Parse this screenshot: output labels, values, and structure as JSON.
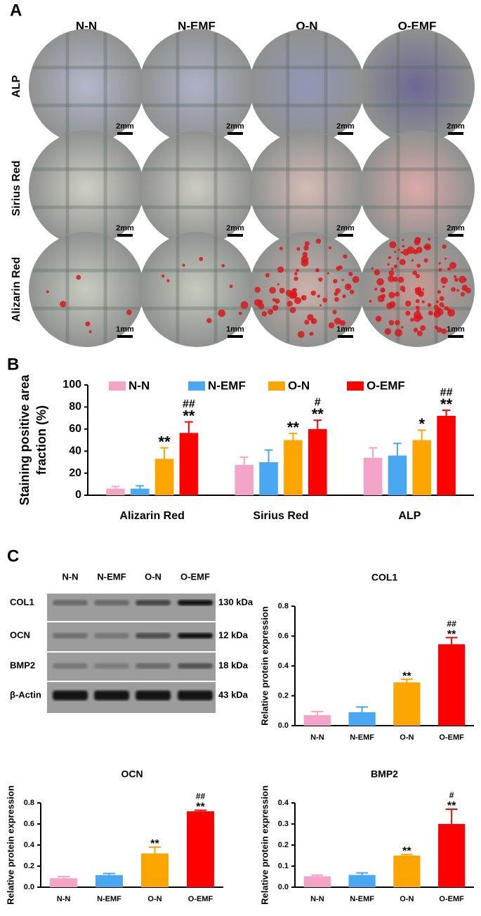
{
  "panel_labels": [
    "A",
    "B",
    "C"
  ],
  "panel_a": {
    "columns": [
      "N-N",
      "N-EMF",
      "O-N",
      "O-EMF"
    ],
    "rows": [
      "ALP",
      "Sirius Red",
      "Alizarin Red"
    ],
    "scale_bars": [
      "2mm",
      "2mm",
      "1mm"
    ]
  },
  "blot": {
    "lanes": [
      "N-N",
      "N-EMF",
      "O-N",
      "O-EMF"
    ],
    "proteins": [
      "COL1",
      "OCN",
      "BMP2",
      "β-Actin"
    ],
    "sizes": [
      "130 kDa",
      "12 kDa",
      "18 kDa",
      "43 kDa"
    ]
  },
  "chart_data": [
    {
      "type": "bar",
      "ylabel": [
        "Staining positive area",
        "fraction (%)"
      ],
      "categories": [
        "Alizarin Red",
        "Sirius Red",
        "ALP"
      ],
      "series": [
        {
          "name": "N-N",
          "color": "#f4a3c9",
          "values": [
            6,
            27.5,
            34
          ],
          "errors": [
            2,
            7,
            9
          ],
          "stars": [
            null,
            null,
            null
          ],
          "hashes": [
            null,
            null,
            null
          ]
        },
        {
          "name": "N-EMF",
          "color": "#4aa8f2",
          "values": [
            6,
            30,
            36
          ],
          "errors": [
            2.5,
            11,
            11
          ],
          "stars": [
            null,
            null,
            null
          ],
          "hashes": [
            null,
            null,
            null
          ]
        },
        {
          "name": "O-N",
          "color": "#ffa500",
          "values": [
            33,
            50,
            50
          ],
          "errors": [
            10,
            6,
            9
          ],
          "stars": [
            "**",
            "**",
            "*"
          ],
          "hashes": [
            null,
            null,
            null
          ]
        },
        {
          "name": "O-EMF",
          "color": "#ff0000",
          "values": [
            56.5,
            60,
            72
          ],
          "errors": [
            10,
            8,
            5
          ],
          "stars": [
            "**",
            "**",
            "**"
          ],
          "hashes": [
            "##",
            "#",
            "##"
          ]
        }
      ],
      "ylim": [
        0,
        100
      ],
      "yticks": [
        0,
        20,
        40,
        60,
        80,
        100
      ],
      "legend": "top"
    },
    {
      "type": "bar",
      "title": "COL1",
      "ylabel": [
        "Relative protein expression"
      ],
      "categories": [
        "N-N",
        "N-EMF",
        "O-N",
        "O-EMF"
      ],
      "values": [
        0.07,
        0.09,
        0.29,
        0.545
      ],
      "errors": [
        0.025,
        0.035,
        0.02,
        0.045
      ],
      "colors": [
        "#f4a3c9",
        "#4aa8f2",
        "#ffa500",
        "#ff0000"
      ],
      "stars": [
        null,
        null,
        "**",
        "**"
      ],
      "hashes": [
        null,
        null,
        null,
        "##"
      ],
      "ylim": [
        0,
        0.8
      ],
      "yticks": [
        {
          "value": 0,
          "label": "0.0"
        },
        0.2,
        0.4,
        0.6,
        0.8
      ]
    },
    {
      "type": "bar",
      "title": "OCN",
      "ylabel": [
        "Relative protein expression"
      ],
      "categories": [
        "N-N",
        "N-EMF",
        "O-N",
        "O-EMF"
      ],
      "values": [
        0.085,
        0.115,
        0.32,
        0.72
      ],
      "errors": [
        0.015,
        0.015,
        0.06,
        0.01
      ],
      "colors": [
        "#f4a3c9",
        "#4aa8f2",
        "#ffa500",
        "#ff0000"
      ],
      "stars": [
        null,
        null,
        "**",
        "**"
      ],
      "hashes": [
        null,
        null,
        null,
        "##"
      ],
      "ylim": [
        0,
        0.8
      ],
      "yticks": [
        {
          "value": 0,
          "label": "0.0"
        },
        0.2,
        0.4,
        0.6,
        0.8
      ]
    },
    {
      "type": "bar",
      "title": "BMP2",
      "ylabel": [
        "Relative protein expression"
      ],
      "categories": [
        "N-N",
        "N-EMF",
        "O-N",
        "O-EMF"
      ],
      "values": [
        0.052,
        0.058,
        0.15,
        0.3
      ],
      "errors": [
        0.005,
        0.01,
        0.005,
        0.07
      ],
      "colors": [
        "#f4a3c9",
        "#4aa8f2",
        "#ffa500",
        "#ff0000"
      ],
      "stars": [
        null,
        null,
        "**",
        "**"
      ],
      "hashes": [
        null,
        null,
        null,
        "#"
      ],
      "ylim": [
        0,
        0.4
      ],
      "yticks": [
        {
          "value": 0,
          "label": "0.0"
        },
        0.1,
        0.2,
        0.3,
        0.4
      ]
    }
  ]
}
